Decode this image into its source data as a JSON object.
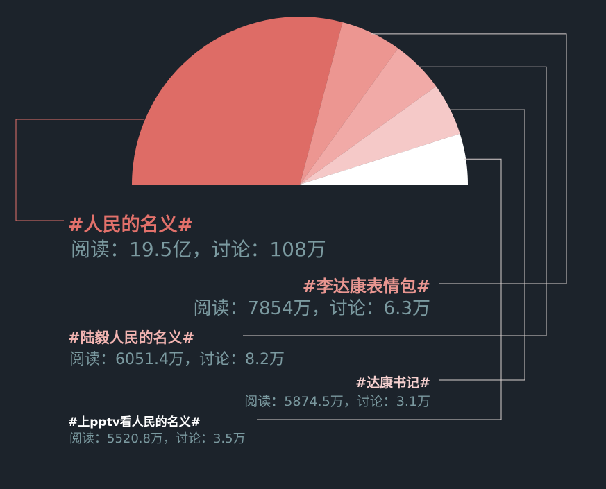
{
  "colors": {
    "background": "#1c232b",
    "slices": [
      "#de6c66",
      "#ec9691",
      "#f1aaa7",
      "#f5c9c8",
      "#ffffff"
    ],
    "title_colors": [
      "#e2716b",
      "#e89590",
      "#f2b4b1",
      "#f6d0cf",
      "#ffffff"
    ],
    "stats_color": "#7b9aa0"
  },
  "chart_data": {
    "type": "pie",
    "variant": "semicircle",
    "values_unit": "reads",
    "series": [
      {
        "name": "#人民的名义#",
        "reads": 1950000000,
        "stats": "阅读：19.5亿，讨论：108万"
      },
      {
        "name": "#李达康表情包#",
        "reads": 78540000,
        "stats": "阅读：7854万，讨论：6.3万"
      },
      {
        "name": "#陆毅人民的名义#",
        "reads": 60514000,
        "stats": "阅读：6051.4万，讨论：8.2万"
      },
      {
        "name": "#达康书记#",
        "reads": 58745000,
        "stats": "阅读：5874.5万，讨论：3.1万"
      },
      {
        "name": "#上pptv看人民的名义#",
        "reads": 55208000,
        "stats": "阅读：5520.8万，讨论：3.5万"
      }
    ]
  }
}
